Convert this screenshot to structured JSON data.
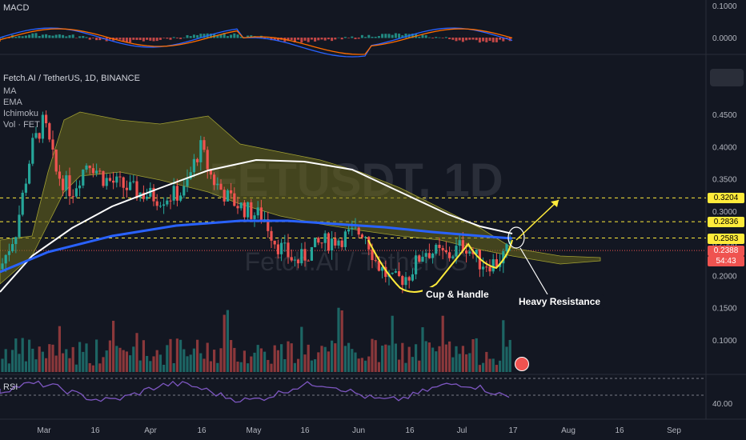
{
  "symbol_title": "Fetch.AI / TetherUS, 1D, BINANCE",
  "watermark_ticker": "FETUSDT, 1D",
  "watermark_name": "Fetch.AI / TetherUS",
  "indicators": [
    "MA",
    "EMA",
    "Ichimoku",
    "Vol · FET"
  ],
  "macd_label": "MACD",
  "rsi_label": "RSI",
  "colors": {
    "up": "#26a69a",
    "down": "#ef5350",
    "ma": "#ffffff",
    "ema": "#2962ff",
    "cloud": "#6b6a1c",
    "annotation": "#ffeb3b",
    "arrow": "#ffeb3b",
    "resistance": "#ffffff"
  },
  "annotations": {
    "cup_handle": "Cup & Handle",
    "resistance": "Heavy Resistance"
  },
  "price_boxes": [
    {
      "value": "0.3204",
      "price": 0.3204,
      "bg": "#ffeb3b",
      "fg": "#000000"
    },
    {
      "value": "0.2836",
      "price": 0.2836,
      "bg": "#ffeb3b",
      "fg": "#000000"
    },
    {
      "value": "0.2583",
      "price": 0.2583,
      "bg": "#ffeb3b",
      "fg": "#000000"
    },
    {
      "value": "0.2388",
      "price": 0.2388,
      "bg": "#ef5350",
      "fg": "#ffffff"
    },
    {
      "value": "54:43",
      "price": 0.226,
      "bg": "#ef5350",
      "fg": "#ffffff"
    }
  ],
  "chart_data": [
    {
      "type": "line",
      "title": "Fetch.AI / TetherUS, 1D, BINANCE",
      "x_ticks": [
        "Mar",
        "16",
        "Apr",
        "16",
        "May",
        "16",
        "Jun",
        "16",
        "Jul",
        "17",
        "Aug",
        "16",
        "Sep"
      ],
      "y_ticks": [
        "0.4500",
        "0.4000",
        "0.3500",
        "0.3000",
        "0.2500",
        "0.2000",
        "0.1500",
        "0.1000"
      ],
      "ylim": [
        0.075,
        0.53
      ],
      "horizontal_levels": [
        0.3204,
        0.2836,
        0.2583
      ],
      "current_price": 0.2388,
      "series": [
        {
          "name": "MA",
          "values": [
            0.17,
            0.26,
            0.32,
            0.355,
            0.375,
            0.38,
            0.37,
            0.345,
            0.31,
            0.275,
            0.255
          ]
        },
        {
          "name": "EMA",
          "values": [
            0.225,
            0.25,
            0.265,
            0.275,
            0.28,
            0.282,
            0.278,
            0.272,
            0.265,
            0.258,
            0.254
          ]
        },
        {
          "name": "Close",
          "values": [
            0.21,
            0.44,
            0.36,
            0.31,
            0.41,
            0.32,
            0.3,
            0.26,
            0.27,
            0.19,
            0.27,
            0.23,
            0.25
          ]
        }
      ]
    },
    {
      "type": "line",
      "title": "MACD",
      "y_ticks": [
        "0.1000",
        "0.0000"
      ]
    },
    {
      "type": "line",
      "title": "RSI",
      "y_ticks": [
        "40.00"
      ]
    }
  ]
}
